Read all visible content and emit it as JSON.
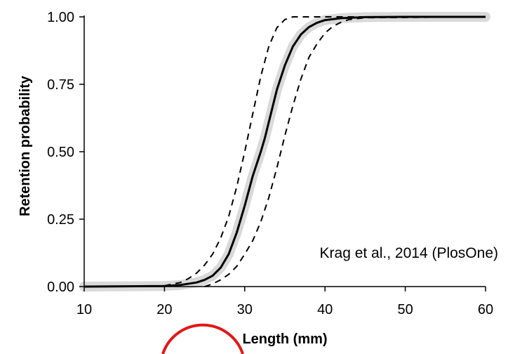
{
  "chart_data": {
    "type": "line",
    "title": "",
    "xlabel": "Length (mm)",
    "ylabel": "Retention probability",
    "xlim": [
      10,
      60
    ],
    "ylim": [
      0,
      1
    ],
    "xticks": [
      "10",
      "20",
      "30",
      "40",
      "50",
      "60"
    ],
    "yticks": [
      "0.00",
      "0.25",
      "0.50",
      "0.75",
      "1.00"
    ],
    "grid": false,
    "legend": "none",
    "annotation": "Krag et al., 2014 (PlosOne)",
    "series": [
      {
        "role": "fitted-curve",
        "style": "solid",
        "color": "#000000",
        "x": [
          10,
          20,
          22,
          24,
          25,
          26,
          27,
          28,
          29,
          30,
          31,
          32,
          32.5,
          33,
          34,
          35,
          36,
          37,
          38,
          39,
          40,
          42,
          45,
          50,
          60
        ],
        "y": [
          0.0,
          0.002,
          0.006,
          0.015,
          0.025,
          0.04,
          0.07,
          0.12,
          0.2,
          0.3,
          0.41,
          0.5,
          0.55,
          0.61,
          0.73,
          0.82,
          0.89,
          0.935,
          0.962,
          0.978,
          0.988,
          0.995,
          0.999,
          1.0,
          1.0
        ]
      },
      {
        "role": "upper-confidence-band",
        "style": "dashed",
        "color": "#000000",
        "x": [
          20,
          22,
          23,
          24,
          25,
          26,
          27,
          28,
          29,
          30,
          31,
          32,
          33,
          34,
          35,
          36,
          37,
          60
        ],
        "y": [
          0.003,
          0.015,
          0.03,
          0.05,
          0.08,
          0.12,
          0.18,
          0.26,
          0.37,
          0.5,
          0.64,
          0.78,
          0.89,
          0.96,
          0.99,
          1.0,
          1.0,
          1.0
        ]
      },
      {
        "role": "lower-confidence-band",
        "style": "dashed",
        "color": "#000000",
        "x": [
          25,
          26,
          27,
          28,
          29,
          30,
          31,
          32,
          33,
          34,
          35,
          36,
          37,
          38,
          39,
          40,
          41,
          42,
          43,
          45,
          60
        ],
        "y": [
          0.0,
          0.01,
          0.025,
          0.045,
          0.075,
          0.12,
          0.17,
          0.24,
          0.33,
          0.44,
          0.56,
          0.67,
          0.77,
          0.85,
          0.9,
          0.94,
          0.965,
          0.98,
          0.99,
          0.997,
          1.0
        ]
      }
    ],
    "colors": {
      "axis": "#000000",
      "band": "#d9d9d9",
      "ring": "#e01818"
    }
  }
}
